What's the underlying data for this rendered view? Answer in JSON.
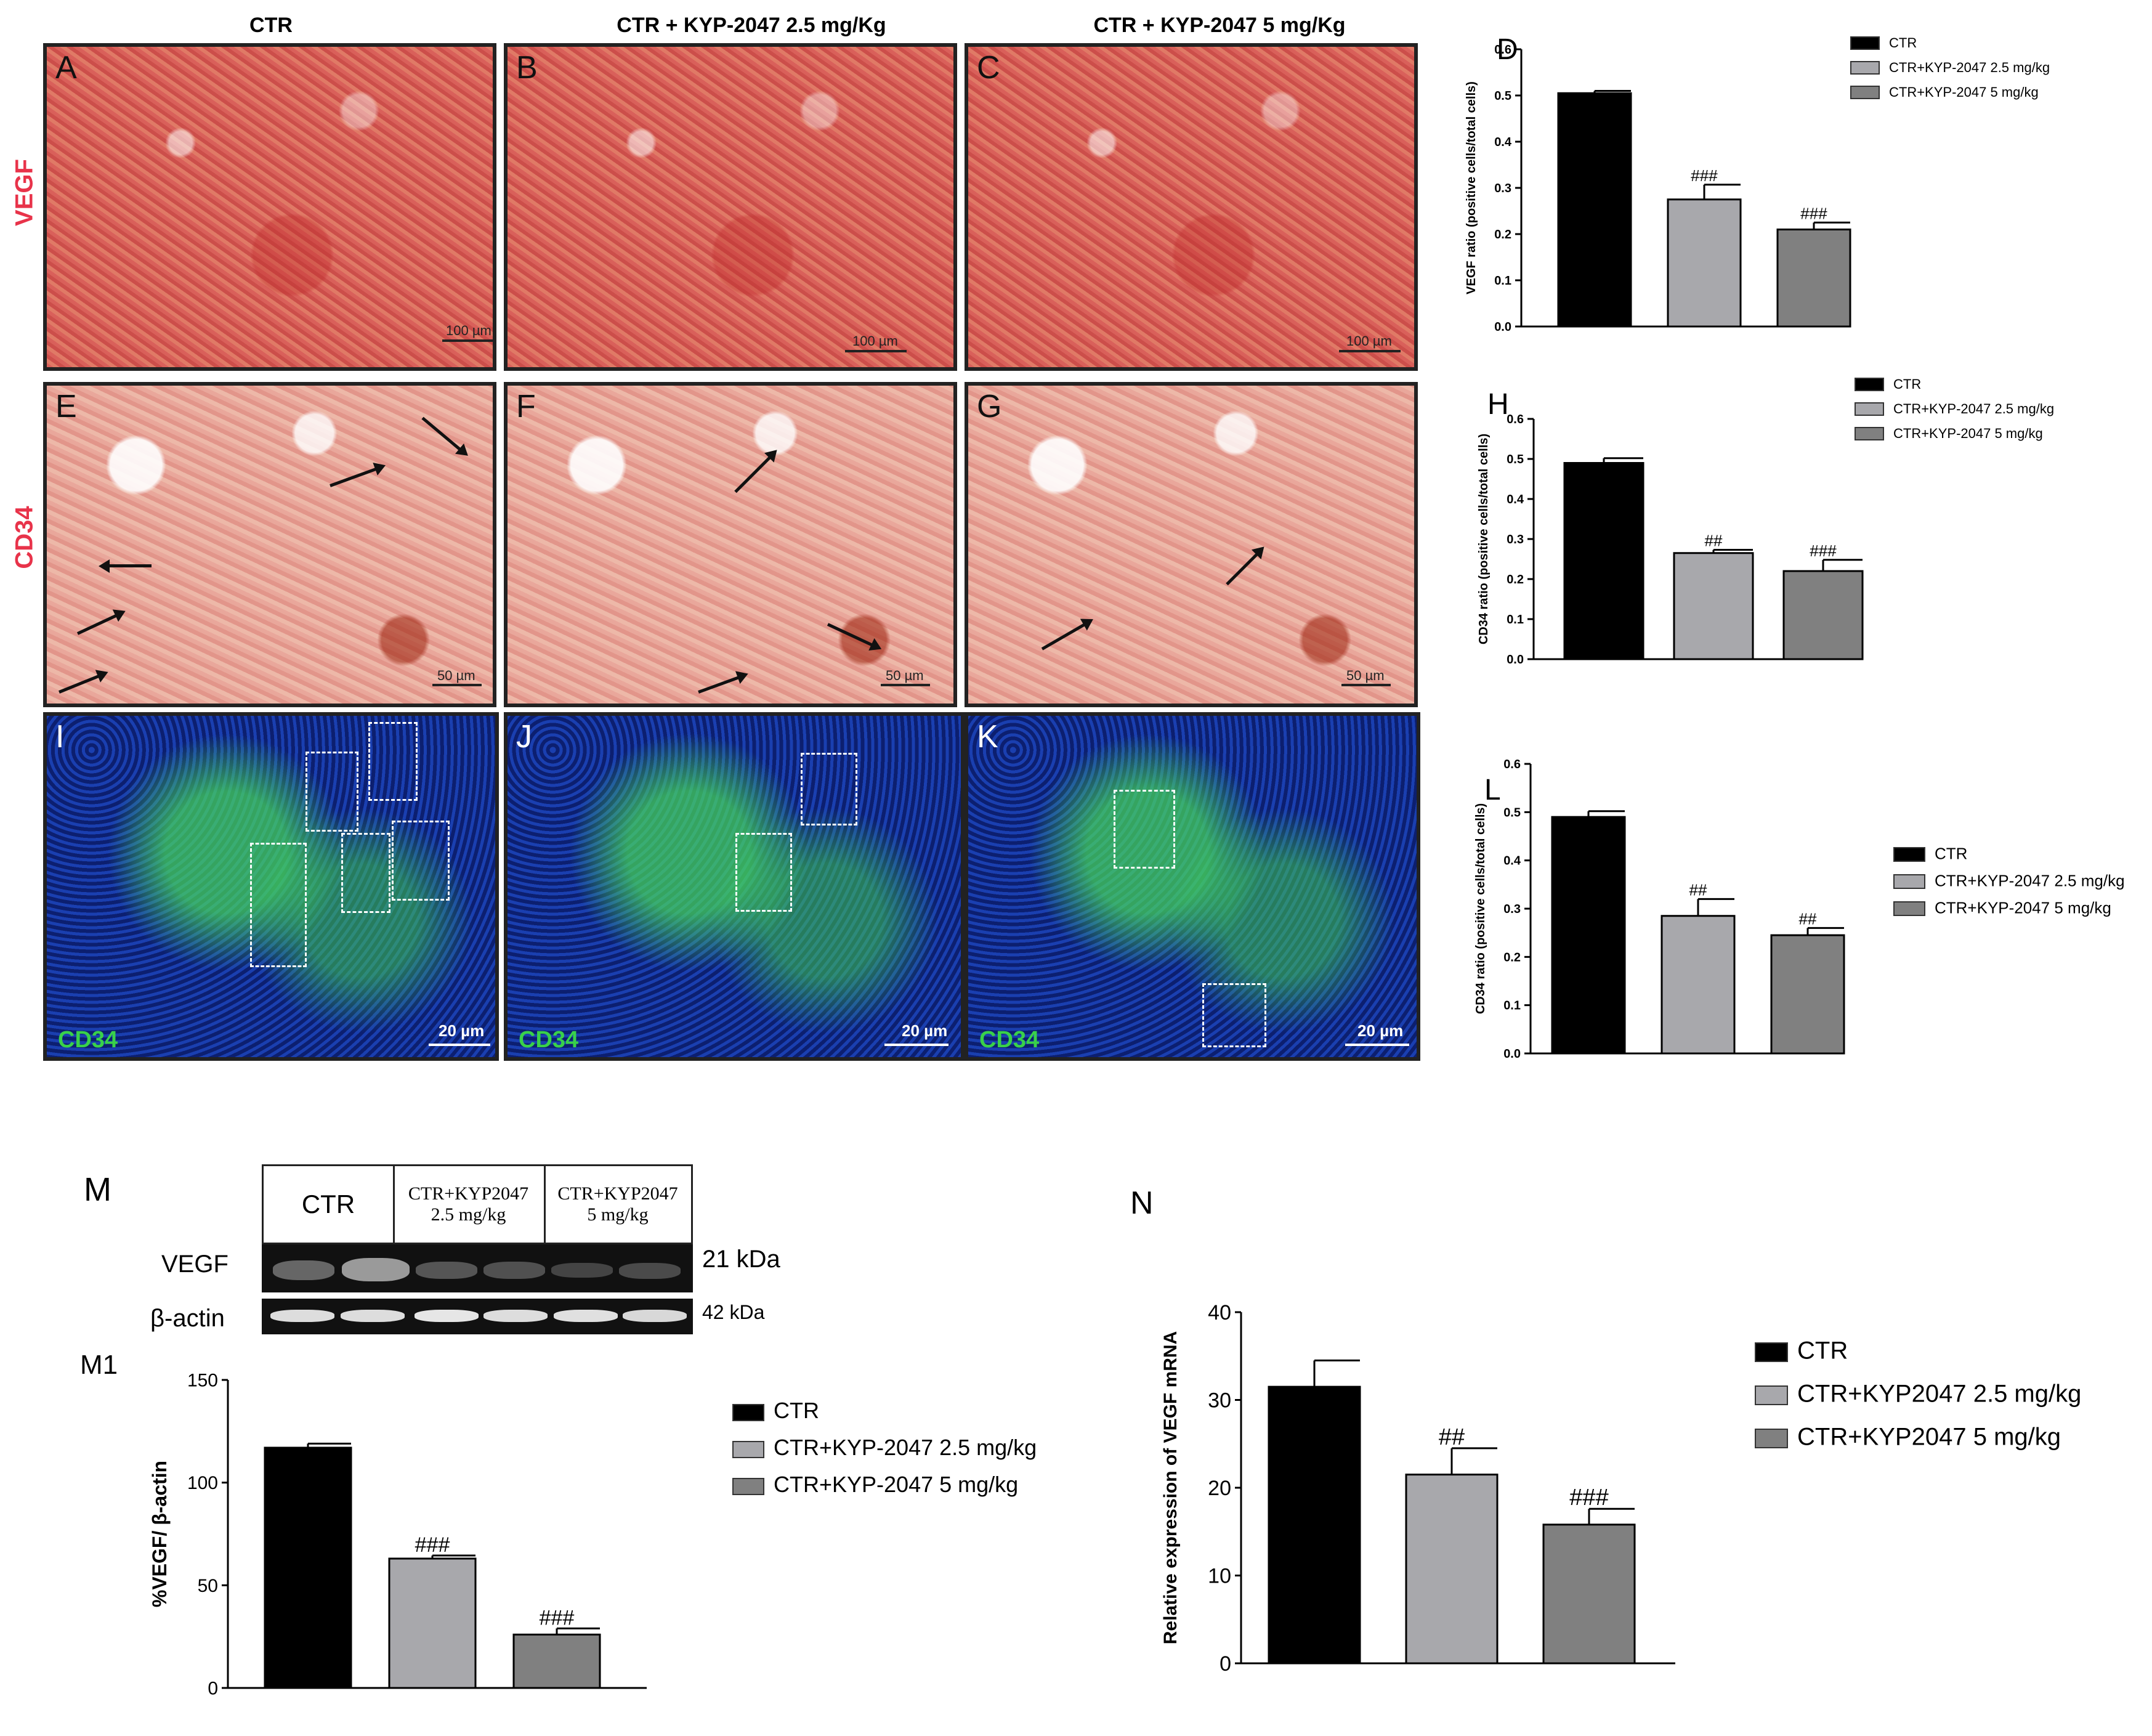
{
  "column_titles": [
    "CTR",
    "CTR + KYP-2047  2.5 mg/Kg",
    "CTR + KYP-2047  5 mg/Kg"
  ],
  "row_labels": {
    "vegf": "VEGF",
    "cd34": "CD34"
  },
  "panels": {
    "A": "A",
    "B": "B",
    "C": "C",
    "E": "E",
    "F": "F",
    "G": "G",
    "I": "I",
    "J": "J",
    "K": "K"
  },
  "scale": {
    "ihc_vegf": "100 µm",
    "ihc_cd34": "50 µm",
    "if": "20 µm"
  },
  "if_stain_label": "CD34",
  "colors": {
    "ctr": "#000000",
    "dose_low": "#a8a8ac",
    "dose_high": "#808080",
    "row_label": "#e8334a",
    "if_green": "#39d14a"
  },
  "western": {
    "panel_label": "M",
    "group_labels": [
      "CTR",
      "CTR+KYP2047\n2.5 mg/kg",
      "CTR+KYP2047\n5 mg/kg"
    ],
    "row_labels": [
      "VEGF",
      "β-actin"
    ],
    "sizes": [
      "21 kDa",
      "42 kDa"
    ]
  },
  "chart_data": [
    {
      "panel": "D",
      "type": "bar",
      "ylabel": "VEGF ratio (positive cells/total cells)",
      "ylim": [
        0,
        0.6
      ],
      "yticks": [
        0.0,
        0.1,
        0.2,
        0.3,
        0.4,
        0.5,
        0.6
      ],
      "series": [
        {
          "name": "CTR",
          "value": 0.505,
          "error": 0.005,
          "sig": ""
        },
        {
          "name": "CTR+KYP-2047 2.5 mg/kg",
          "value": 0.275,
          "error": 0.032,
          "sig": "###"
        },
        {
          "name": "CTR+KYP-2047 5 mg/kg",
          "value": 0.21,
          "error": 0.015,
          "sig": "###"
        }
      ],
      "legend_position": "top-right"
    },
    {
      "panel": "H",
      "type": "bar",
      "ylabel": "CD34 ratio (positive cells/total cells)",
      "ylim": [
        0,
        0.6
      ],
      "yticks": [
        0.0,
        0.1,
        0.2,
        0.3,
        0.4,
        0.5,
        0.6
      ],
      "series": [
        {
          "name": "CTR",
          "value": 0.49,
          "error": 0.012,
          "sig": ""
        },
        {
          "name": "CTR+KYP-2047 2.5 mg/kg",
          "value": 0.265,
          "error": 0.008,
          "sig": "##"
        },
        {
          "name": "CTR+KYP-2047 5 mg/kg",
          "value": 0.22,
          "error": 0.028,
          "sig": "###"
        }
      ],
      "legend_position": "top-right"
    },
    {
      "panel": "L",
      "type": "bar",
      "ylabel": "CD34 ratio (positive cells/total cells)",
      "ylim": [
        0,
        0.6
      ],
      "yticks": [
        0.0,
        0.1,
        0.2,
        0.3,
        0.4,
        0.5,
        0.6
      ],
      "series": [
        {
          "name": "CTR",
          "value": 0.49,
          "error": 0.012,
          "sig": ""
        },
        {
          "name": "CTR+KYP-2047 2.5 mg/kg",
          "value": 0.285,
          "error": 0.035,
          "sig": "##"
        },
        {
          "name": "CTR+KYP-2047 5 mg/kg",
          "value": 0.245,
          "error": 0.015,
          "sig": "##"
        }
      ],
      "legend_position": "right"
    },
    {
      "panel": "M1",
      "type": "bar",
      "ylabel": "%VEGF/ β-actin",
      "ylim": [
        0,
        150
      ],
      "yticks": [
        0,
        50,
        100,
        150
      ],
      "series": [
        {
          "name": "CTR",
          "value": 117,
          "error": 2,
          "sig": ""
        },
        {
          "name": "CTR+KYP-2047 2.5 mg/kg",
          "value": 63,
          "error": 1.5,
          "sig": "###"
        },
        {
          "name": "CTR+KYP-2047 5 mg/kg",
          "value": 26,
          "error": 3,
          "sig": "###"
        }
      ],
      "legend_position": "right"
    },
    {
      "panel": "N",
      "type": "bar",
      "ylabel": "Relative expression of  VEGF mRNA",
      "ylim": [
        0,
        40
      ],
      "yticks": [
        0,
        10,
        20,
        30,
        40
      ],
      "series": [
        {
          "name": "CTR",
          "value": 31.5,
          "error": 3,
          "sig": ""
        },
        {
          "name": "CTR+KYP2047 2.5 mg/kg",
          "value": 21.5,
          "error": 3,
          "sig": "##"
        },
        {
          "name": "CTR+KYP2047 5 mg/kg",
          "value": 15.8,
          "error": 1.8,
          "sig": "###"
        }
      ],
      "legend_position": "right"
    }
  ],
  "legends": {
    "D": [
      "CTR",
      "CTR+KYP-2047 2.5 mg/kg",
      "CTR+KYP-2047 5 mg/kg"
    ],
    "H": [
      "CTR",
      "CTR+KYP-2047 2.5 mg/kg",
      "CTR+KYP-2047 5 mg/kg"
    ],
    "L": [
      "CTR",
      "CTR+KYP-2047 2.5 mg/kg",
      "CTR+KYP-2047 5 mg/kg"
    ],
    "M1": [
      "CTR",
      "CTR+KYP-2047 2.5 mg/kg",
      "CTR+KYP-2047 5 mg/kg"
    ],
    "N": [
      "CTR",
      "CTR+KYP2047 2.5 mg/kg",
      "CTR+KYP2047 5 mg/kg"
    ]
  }
}
